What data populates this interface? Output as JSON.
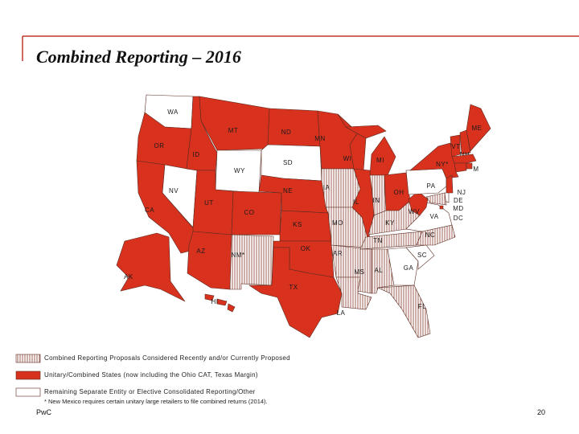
{
  "title": "Combined Reporting – 2016",
  "states": [
    {
      "label": "WA",
      "category": 2
    },
    {
      "label": "OR",
      "category": 1
    },
    {
      "label": "CA",
      "category": 1
    },
    {
      "label": "NV",
      "category": 2
    },
    {
      "label": "ID",
      "category": 1
    },
    {
      "label": "MT",
      "category": 1
    },
    {
      "label": "WY",
      "category": 2
    },
    {
      "label": "UT",
      "category": 1
    },
    {
      "label": "AZ",
      "category": 1
    },
    {
      "label": "CO",
      "category": 1
    },
    {
      "label": "NM*",
      "category": 0
    },
    {
      "label": "ND",
      "category": 1
    },
    {
      "label": "SD",
      "category": 2
    },
    {
      "label": "NE",
      "category": 1
    },
    {
      "label": "KS",
      "category": 1
    },
    {
      "label": "OK",
      "category": 1
    },
    {
      "label": "TX",
      "category": 1
    },
    {
      "label": "MN",
      "category": 1
    },
    {
      "label": "IA",
      "category": 0
    },
    {
      "label": "MO",
      "category": 0
    },
    {
      "label": "AR",
      "category": 0
    },
    {
      "label": "LA",
      "category": 0
    },
    {
      "label": "WI",
      "category": 1
    },
    {
      "label": "IL",
      "category": 1
    },
    {
      "label": "MI",
      "category": 1
    },
    {
      "label": "IN",
      "category": 0
    },
    {
      "label": "OH",
      "category": 1
    },
    {
      "label": "KY",
      "category": 0
    },
    {
      "label": "TN",
      "category": 0
    },
    {
      "label": "MS",
      "category": 0
    },
    {
      "label": "AL",
      "category": 0
    },
    {
      "label": "GA",
      "category": 2
    },
    {
      "label": "FL",
      "category": 0
    },
    {
      "label": "SC",
      "category": 2
    },
    {
      "label": "NC",
      "category": 0
    },
    {
      "label": "VA",
      "category": 2
    },
    {
      "label": "WV",
      "category": 1
    },
    {
      "label": "PA",
      "category": 2
    },
    {
      "label": "NY*",
      "category": 1
    },
    {
      "label": "VT",
      "category": 1
    },
    {
      "label": "NH",
      "category": 1
    },
    {
      "label": "ME",
      "category": 1
    },
    {
      "label": "M",
      "category": 1
    },
    {
      "label": null,
      "category": 1
    },
    {
      "label": null,
      "category": 1
    },
    {
      "label": "NJ",
      "category": 1
    },
    {
      "label": "DE",
      "category": 2
    },
    {
      "label": "MD",
      "category": 0
    },
    {
      "label": "DC",
      "category": 1
    },
    {
      "label": "AK",
      "category": 1
    },
    {
      "label": "HI",
      "category": 1
    }
  ],
  "legend": [
    {
      "label": "Combined Reporting Proposals Considered Recently and/or Currently Proposed"
    },
    {
      "label": "Unitary/Combined States (now including the Ohio CAT, Texas Margin)"
    },
    {
      "label": "Remaining Separate Entity or Elective Consolidated Reporting/Other"
    }
  ],
  "footnote": "* New Mexico requires certain unitary large retailers to file combined returns (2014).",
  "footer": {
    "source": "PwC",
    "page": "20"
  }
}
